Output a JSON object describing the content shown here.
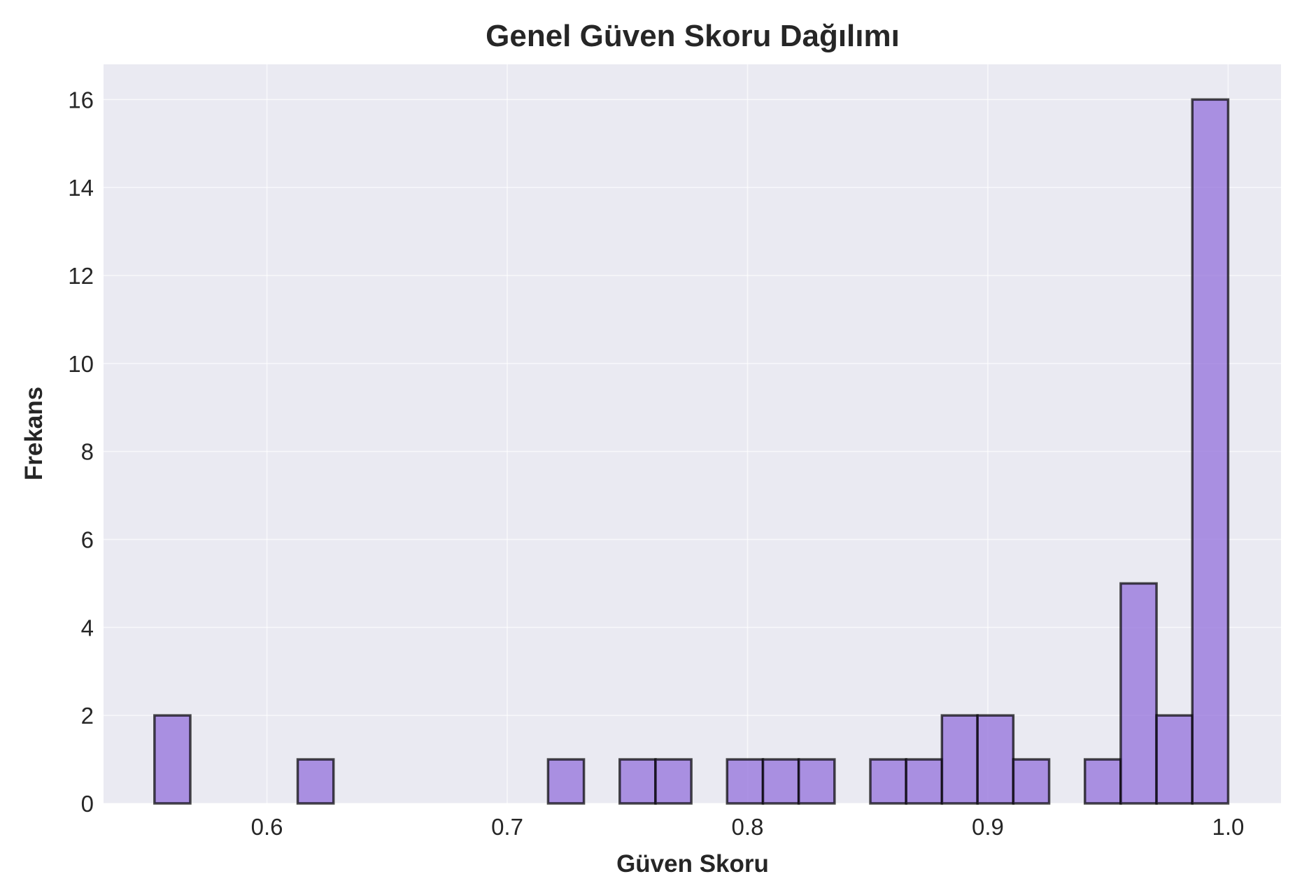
{
  "chart_data": {
    "type": "bar",
    "title": "Genel Güven Skoru Dağılımı",
    "xlabel": "Güven Skoru",
    "ylabel": "Frekans",
    "xlim": [
      0.532,
      1.022
    ],
    "ylim": [
      0,
      16.8
    ],
    "xticks": [
      0.6,
      0.7,
      0.8,
      0.9,
      1.0
    ],
    "xtick_labels": [
      "0.6",
      "0.7",
      "0.8",
      "0.9",
      "1.0"
    ],
    "yticks": [
      0,
      2,
      4,
      6,
      8,
      10,
      12,
      14,
      16
    ],
    "ytick_labels": [
      "0",
      "2",
      "4",
      "6",
      "8",
      "10",
      "12",
      "14",
      "16"
    ],
    "grid": true,
    "bin_edges": [
      0.5532,
      0.5681,
      0.583,
      0.5979,
      0.6128,
      0.6277,
      0.6426,
      0.6575,
      0.6724,
      0.6873,
      0.7021,
      0.717,
      0.7319,
      0.7468,
      0.7617,
      0.7766,
      0.7915,
      0.8064,
      0.8213,
      0.8362,
      0.8511,
      0.866,
      0.8809,
      0.8957,
      0.9106,
      0.9255,
      0.9404,
      0.9553,
      0.9702,
      0.9851,
      1.0
    ],
    "counts": [
      2,
      0,
      0,
      0,
      1,
      0,
      0,
      0,
      0,
      0,
      0,
      1,
      0,
      1,
      1,
      0,
      1,
      1,
      1,
      0,
      1,
      1,
      2,
      2,
      1,
      0,
      1,
      5,
      2,
      16
    ],
    "bar_color": "#9370DB",
    "edge_color": "#000000",
    "background_color": "#EAEAF2"
  }
}
